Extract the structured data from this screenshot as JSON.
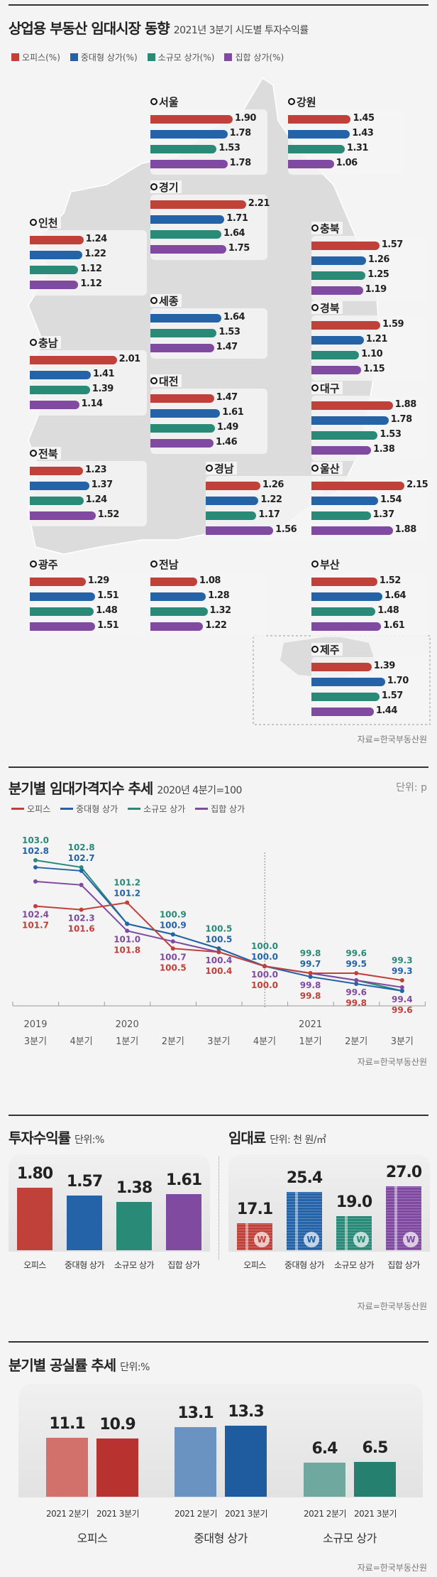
{
  "colors": {
    "office": "#c0403a",
    "mid_large": "#2563a8",
    "small": "#2a8a78",
    "collective": "#7f4aa0"
  },
  "section1": {
    "title": "상업용 부동산 임대시장 동향",
    "subtitle": "2021년 3분기 시도별 투자수익률",
    "legend": [
      "오피스(%)",
      "중대형 상가(%)",
      "소규모 상가(%)",
      "집합 상가(%)"
    ],
    "source": "자료=한국부동산원",
    "chart_data": {
      "type": "bar",
      "orientation": "horizontal",
      "series_names": [
        "오피스(%)",
        "중대형 상가(%)",
        "소규모 상가(%)",
        "집합 상가(%)"
      ],
      "regions": [
        {
          "name": "서울",
          "values": [
            1.9,
            1.78,
            1.53,
            1.78
          ]
        },
        {
          "name": "강원",
          "values": [
            1.45,
            1.43,
            1.31,
            1.06
          ]
        },
        {
          "name": "경기",
          "values": [
            2.21,
            1.71,
            1.64,
            1.75
          ]
        },
        {
          "name": "인천",
          "values": [
            1.24,
            1.22,
            1.12,
            1.12
          ]
        },
        {
          "name": "충북",
          "values": [
            1.57,
            1.26,
            1.25,
            1.19
          ]
        },
        {
          "name": "세종",
          "values": [
            null,
            1.64,
            1.53,
            1.47
          ]
        },
        {
          "name": "경북",
          "values": [
            1.59,
            1.21,
            1.1,
            1.15
          ]
        },
        {
          "name": "충남",
          "values": [
            2.01,
            1.41,
            1.39,
            1.14
          ]
        },
        {
          "name": "대전",
          "values": [
            1.47,
            1.61,
            1.49,
            1.46
          ]
        },
        {
          "name": "대구",
          "values": [
            1.88,
            1.78,
            1.53,
            1.38
          ]
        },
        {
          "name": "전북",
          "values": [
            1.23,
            1.37,
            1.24,
            1.52
          ]
        },
        {
          "name": "경남",
          "values": [
            1.26,
            1.22,
            1.17,
            1.56
          ]
        },
        {
          "name": "울산",
          "values": [
            2.15,
            1.54,
            1.37,
            1.88
          ]
        },
        {
          "name": "광주",
          "values": [
            1.29,
            1.51,
            1.48,
            1.51
          ]
        },
        {
          "name": "전남",
          "values": [
            1.08,
            1.28,
            1.32,
            1.22
          ]
        },
        {
          "name": "부산",
          "values": [
            1.52,
            1.64,
            1.48,
            1.61
          ]
        },
        {
          "name": "제주",
          "values": [
            1.39,
            1.7,
            1.57,
            1.44
          ]
        }
      ]
    }
  },
  "section2": {
    "title": "분기별 임대가격지수 추세",
    "subtitle": "2020년 4분기=100",
    "unit": "단위: p",
    "source": "자료=한국부동산원",
    "chart_data": {
      "type": "line",
      "x_years": [
        "2019",
        "",
        "2020",
        "",
        "",
        "",
        "2021",
        "",
        ""
      ],
      "x_quarters": [
        "3분기",
        "4분기",
        "1분기",
        "2분기",
        "3분기",
        "4분기",
        "1분기",
        "2분기",
        "3분기"
      ],
      "ylim": [
        99.3,
        103.0
      ],
      "reference_line": "2020 4분기",
      "series": [
        {
          "name": "오피스",
          "values": [
            101.7,
            101.6,
            101.8,
            100.5,
            100.4,
            100.0,
            99.8,
            99.8,
            99.6
          ]
        },
        {
          "name": "중대형 상가",
          "values": [
            102.8,
            102.7,
            101.2,
            100.9,
            100.5,
            100.0,
            99.7,
            99.5,
            99.3
          ]
        },
        {
          "name": "소규모 상가",
          "values": [
            103.0,
            102.8,
            101.2,
            100.9,
            100.5,
            100.0,
            99.8,
            99.6,
            99.3
          ]
        },
        {
          "name": "집합 상가",
          "values": [
            102.4,
            102.3,
            101.0,
            100.7,
            100.4,
            100.0,
            99.8,
            99.6,
            99.4
          ]
        }
      ]
    }
  },
  "section3": {
    "left": {
      "title": "투자수익률",
      "unit": "단위:%",
      "chart_data": {
        "type": "bar",
        "categories": [
          "오피스",
          "중대형 상가",
          "소규모 상가",
          "집합 상가"
        ],
        "values": [
          1.8,
          1.57,
          1.38,
          1.61
        ],
        "value_labels": [
          "1.80",
          "1.57",
          "1.38",
          "1.61"
        ]
      }
    },
    "right": {
      "title": "임대료",
      "unit": "단위: 천 원/㎡",
      "icon": "won-coin-icon",
      "chart_data": {
        "type": "bar",
        "categories": [
          "오피스",
          "중대형 상가",
          "소규모 상가",
          "집합 상가"
        ],
        "values": [
          17.1,
          25.4,
          19.0,
          27.0
        ],
        "value_labels": [
          "17.1",
          "25.4",
          "19.0",
          "27.0"
        ]
      }
    },
    "coin_label": "W",
    "source": "자료=한국부동산원"
  },
  "section4": {
    "title": "분기별 공실률 추세",
    "unit": "단위:%",
    "chart_data": {
      "type": "bar",
      "groups": [
        "오피스",
        "중대형 상가",
        "소규모 상가"
      ],
      "quarters": [
        "2021 2분기",
        "2021 3분기"
      ],
      "values": [
        [
          11.1,
          10.9
        ],
        [
          13.1,
          13.3
        ],
        [
          6.4,
          6.5
        ]
      ],
      "value_labels": [
        [
          "11.1",
          "10.9"
        ],
        [
          "13.1",
          "13.3"
        ],
        [
          "6.4",
          "6.5"
        ]
      ]
    },
    "source": "자료=한국부동산원"
  }
}
